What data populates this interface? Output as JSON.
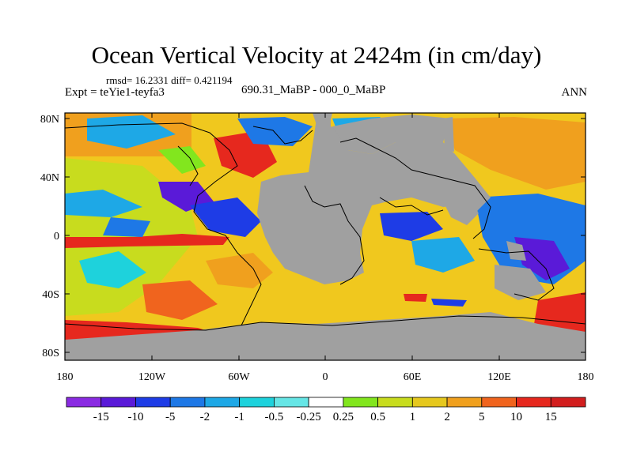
{
  "header": {
    "title": "Ocean Vertical Velocity at 2424m (in cm/day)",
    "stats": "rmsd= 16.2331 diff= 0.421194",
    "experiment": "Expt = teYie1-teyfa3",
    "period": "690.31_MaBP - 000_0_MaBP",
    "season": "ANN"
  },
  "map": {
    "lat_labels": [
      "80N",
      "40N",
      "0",
      "40S",
      "80S"
    ],
    "lon_labels": [
      "180",
      "120W",
      "60W",
      "0",
      "60E",
      "120E",
      "180"
    ],
    "land_color": "#a0a0a0"
  },
  "colorbar": {
    "labels": [
      "-15",
      "-10",
      "-5",
      "-2",
      "-1",
      "-0.5",
      "-0.25",
      "0.25",
      "0.5",
      "1",
      "2",
      "5",
      "10",
      "15"
    ],
    "colors": [
      "#8a2be2",
      "#5a1ad8",
      "#1e3ce6",
      "#1e78e6",
      "#1ea8e6",
      "#1ed2dc",
      "#66e6e6",
      "#ffffff",
      "#82e61e",
      "#c8dc1e",
      "#e6c81e",
      "#f0a01e",
      "#f0641e",
      "#e6281e",
      "#d21e1e"
    ]
  }
}
